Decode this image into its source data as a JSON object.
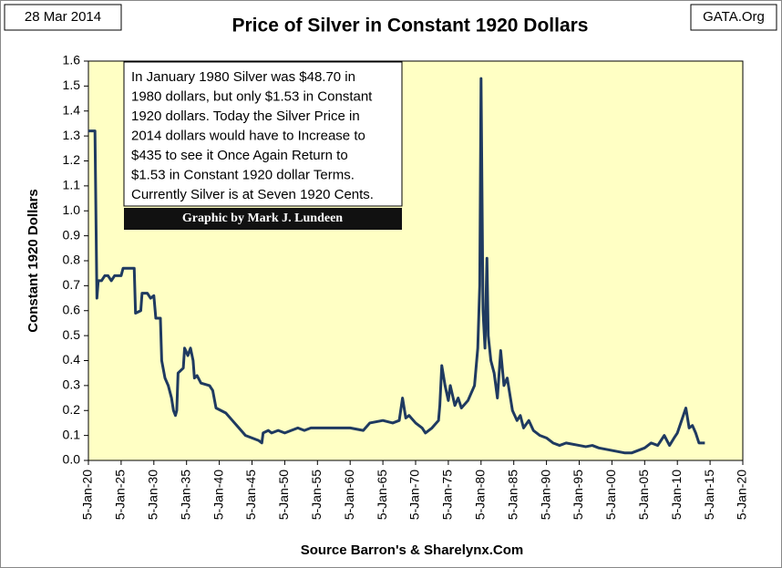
{
  "chart_data": {
    "type": "line",
    "title": "Price of Silver in Constant 1920 Dollars",
    "date_label": "28 Mar 2014",
    "source_site": "GATA.Org",
    "x_label": "Source Barron's & Sharelynx.Com",
    "y_label": "Constant 1920 Dollars",
    "annotation": [
      "In January 1980 Silver was $48.70 in",
      "1980 dollars, but only $1.53 in Constant",
      "1920 dollars.  Today the Silver Price in",
      "2014 dollars would have to Increase to",
      "$435 to see it Once Again Return to",
      "$1.53 in Constant 1920 dollar Terms.",
      "Currently Silver is at Seven 1920 Cents."
    ],
    "credit": "Graphic by Mark J. Lundeen",
    "color": "#1f3a60",
    "xlim": [
      1920,
      2020
    ],
    "xticks": [
      {
        "value": 1920,
        "label": "5-Jan-20"
      },
      {
        "value": 1925,
        "label": "5-Jan-25"
      },
      {
        "value": 1930,
        "label": "5-Jan-30"
      },
      {
        "value": 1935,
        "label": "5-Jan-35"
      },
      {
        "value": 1940,
        "label": "5-Jan-40"
      },
      {
        "value": 1945,
        "label": "5-Jan-45"
      },
      {
        "value": 1950,
        "label": "5-Jan-50"
      },
      {
        "value": 1955,
        "label": "5-Jan-55"
      },
      {
        "value": 1960,
        "label": "5-Jan-60"
      },
      {
        "value": 1965,
        "label": "5-Jan-65"
      },
      {
        "value": 1970,
        "label": "5-Jan-70"
      },
      {
        "value": 1975,
        "label": "5-Jan-75"
      },
      {
        "value": 1980,
        "label": "5-Jan-80"
      },
      {
        "value": 1985,
        "label": "5-Jan-85"
      },
      {
        "value": 1990,
        "label": "5-Jan-90"
      },
      {
        "value": 1995,
        "label": "5-Jan-95"
      },
      {
        "value": 2000,
        "label": "5-Jan-00"
      },
      {
        "value": 2005,
        "label": "5-Jan-05"
      },
      {
        "value": 2010,
        "label": "5-Jan-10"
      },
      {
        "value": 2015,
        "label": "5-Jan-15"
      },
      {
        "value": 2020,
        "label": "5-Jan-20"
      }
    ],
    "ylim": [
      0,
      1.6
    ],
    "yticks": [
      {
        "value": 0,
        "label": "0.0"
      },
      0.1,
      0.2,
      0.3,
      0.4,
      0.5,
      0.6,
      0.7,
      0.8,
      0.9,
      {
        "value": 1,
        "label": "1.0"
      },
      1.1,
      1.2,
      1.3,
      1.4,
      1.5,
      1.6
    ],
    "x": [
      1920,
      1921,
      1921.3,
      1921.5,
      1922,
      1922.5,
      1923,
      1923.5,
      1924,
      1925,
      1925.3,
      1927,
      1927.2,
      1928,
      1928.2,
      1929,
      1929.5,
      1930,
      1930.3,
      1931,
      1931.2,
      1931.7,
      1932.2,
      1932.7,
      1933,
      1933.3,
      1933.5,
      1933.7,
      1934.5,
      1934.7,
      1935.2,
      1935.6,
      1936,
      1936.2,
      1936.6,
      1937.2,
      1938.5,
      1939,
      1939.5,
      1941,
      1942,
      1943,
      1944,
      1945,
      1946,
      1946.5,
      1946.7,
      1947.5,
      1948,
      1949,
      1950,
      1951,
      1952,
      1953,
      1954,
      1957,
      1960,
      1962,
      1963,
      1965,
      1966.5,
      1967.5,
      1968,
      1968.5,
      1969,
      1970,
      1971,
      1971.5,
      1972.5,
      1973.5,
      1973.7,
      1974,
      1974.5,
      1975,
      1975.3,
      1976,
      1976.5,
      1977,
      1978,
      1979,
      1979.5,
      1979.8,
      1980,
      1980.3,
      1980.6,
      1980.9,
      1981.1,
      1981.5,
      1982,
      1982.5,
      1983,
      1983.5,
      1984,
      1984.8,
      1985.5,
      1986,
      1986.5,
      1987.3,
      1988,
      1988.5,
      1989,
      1990,
      1991,
      1992,
      1993,
      1995,
      1996,
      1997,
      1998,
      1999,
      2000,
      2001,
      2002,
      2003,
      2004,
      2005,
      2006,
      2007,
      2008,
      2008.8,
      2009.5,
      2010,
      2011.3,
      2011.8,
      2012.3,
      2012.8,
      2013.3,
      2014.2
    ],
    "values": [
      1.32,
      1.32,
      0.65,
      0.72,
      0.72,
      0.74,
      0.74,
      0.72,
      0.74,
      0.74,
      0.77,
      0.77,
      0.59,
      0.6,
      0.67,
      0.67,
      0.65,
      0.66,
      0.57,
      0.57,
      0.4,
      0.33,
      0.3,
      0.25,
      0.2,
      0.18,
      0.2,
      0.35,
      0.37,
      0.45,
      0.42,
      0.45,
      0.4,
      0.33,
      0.34,
      0.31,
      0.3,
      0.28,
      0.21,
      0.19,
      0.16,
      0.13,
      0.1,
      0.09,
      0.08,
      0.07,
      0.11,
      0.12,
      0.11,
      0.12,
      0.11,
      0.12,
      0.13,
      0.12,
      0.13,
      0.13,
      0.13,
      0.12,
      0.15,
      0.16,
      0.15,
      0.16,
      0.25,
      0.17,
      0.18,
      0.15,
      0.13,
      0.11,
      0.13,
      0.16,
      0.22,
      0.38,
      0.3,
      0.24,
      0.3,
      0.22,
      0.25,
      0.21,
      0.24,
      0.3,
      0.45,
      0.7,
      1.53,
      0.6,
      0.45,
      0.81,
      0.5,
      0.4,
      0.35,
      0.25,
      0.44,
      0.3,
      0.33,
      0.2,
      0.16,
      0.18,
      0.13,
      0.16,
      0.12,
      0.11,
      0.1,
      0.09,
      0.07,
      0.06,
      0.07,
      0.06,
      0.055,
      0.06,
      0.05,
      0.045,
      0.04,
      0.035,
      0.03,
      0.03,
      0.04,
      0.05,
      0.07,
      0.06,
      0.1,
      0.06,
      0.09,
      0.11,
      0.21,
      0.13,
      0.14,
      0.11,
      0.07,
      0.07
    ]
  }
}
